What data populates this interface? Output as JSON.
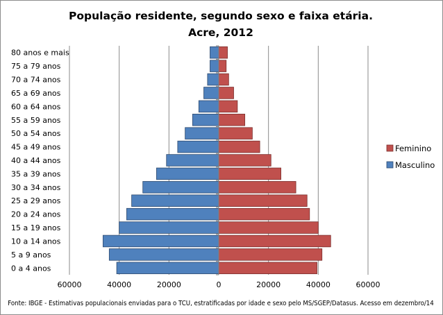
{
  "chart_data": {
    "type": "bar",
    "orientation": "horizontal",
    "layout": "population-pyramid",
    "title_line1": "População residente, segundo sexo e faixa etária.",
    "title_line2": "Acre, 2012",
    "categories": [
      "0 a 4 anos",
      "5 a 9 anos",
      "10 a 14 anos",
      "15 a 19 anos",
      "20 a 24 anos",
      "25 a 29 anos",
      "30 a 34 anos",
      "35 a 39 anos",
      "40 a 44 anos",
      "45 a 49 anos",
      "50 a 54 anos",
      "55 a 59 anos",
      "60 a 64 anos",
      "65 a 69 anos",
      "70 a 74 anos",
      "75 a 79 anos",
      "80 anos e mais"
    ],
    "series": [
      {
        "name": "Masculino",
        "color": "#4f81bd",
        "direction": "left",
        "values": [
          41000,
          44000,
          46500,
          40000,
          37000,
          35000,
          30500,
          25000,
          21000,
          16500,
          13500,
          10500,
          8000,
          6000,
          4500,
          3500,
          3500
        ]
      },
      {
        "name": "Feminino",
        "color": "#c0504d",
        "direction": "right",
        "values": [
          39500,
          41500,
          45000,
          40000,
          36500,
          35500,
          31000,
          25000,
          21000,
          16500,
          13500,
          10500,
          7500,
          6000,
          4000,
          3000,
          3500
        ]
      }
    ],
    "x_ticks": [
      "60000",
      "40000",
      "20000",
      "0",
      "20000",
      "40000",
      "60000"
    ],
    "xlim": [
      -60000,
      60000
    ],
    "grid": "vertical",
    "legend_position": "right",
    "source": "Fonte:  IBGE - Estimativas populacionais enviadas para o TCU, estratificadas por idade e sexo pelo MS/SGEP/Datasus. Acesso em dezembro/14"
  }
}
